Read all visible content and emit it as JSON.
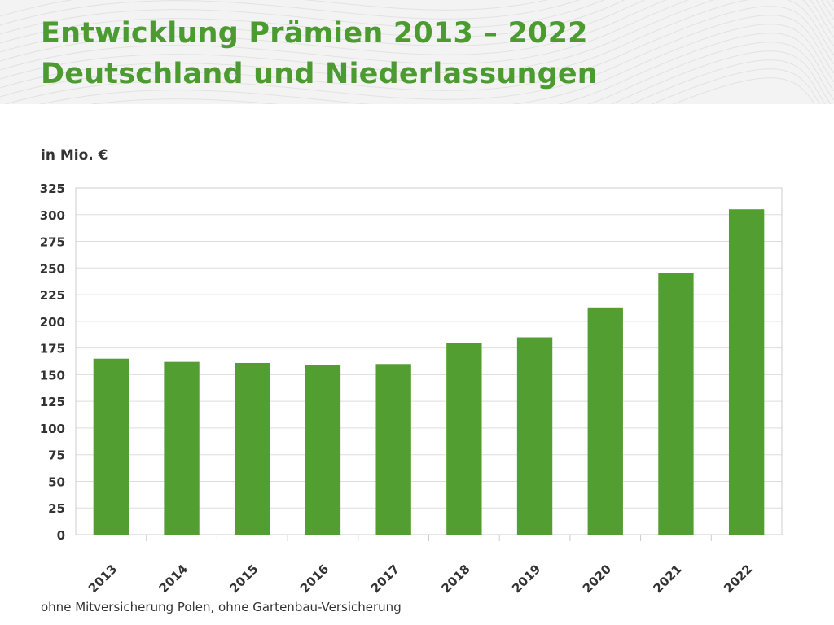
{
  "title": {
    "line1": "Entwicklung Prämien 2013 – 2022",
    "line2": "Deutschland und Niederlassungen"
  },
  "unit_label": "in Mio. €",
  "footnote": "ohne Mitversicherung Polen, ohne Gartenbau-Versicherung",
  "colors": {
    "title": "#4c9b30",
    "bar": "#529e31",
    "text": "#333333",
    "grid": "#dddddd",
    "header_band": "#f3f3f3"
  },
  "chart_data": {
    "type": "bar",
    "title": "",
    "xlabel": "",
    "ylabel": "in Mio. €",
    "categories": [
      "2013",
      "2014",
      "2015",
      "2016",
      "2017",
      "2018",
      "2019",
      "2020",
      "2021",
      "2022"
    ],
    "values": [
      165,
      162,
      161,
      159,
      160,
      180,
      185,
      213,
      245,
      305
    ],
    "ylim": [
      0,
      325
    ],
    "yticks": [
      0,
      25,
      50,
      75,
      100,
      125,
      150,
      175,
      200,
      225,
      250,
      275,
      300,
      325
    ],
    "grid": true,
    "legend": "none"
  }
}
